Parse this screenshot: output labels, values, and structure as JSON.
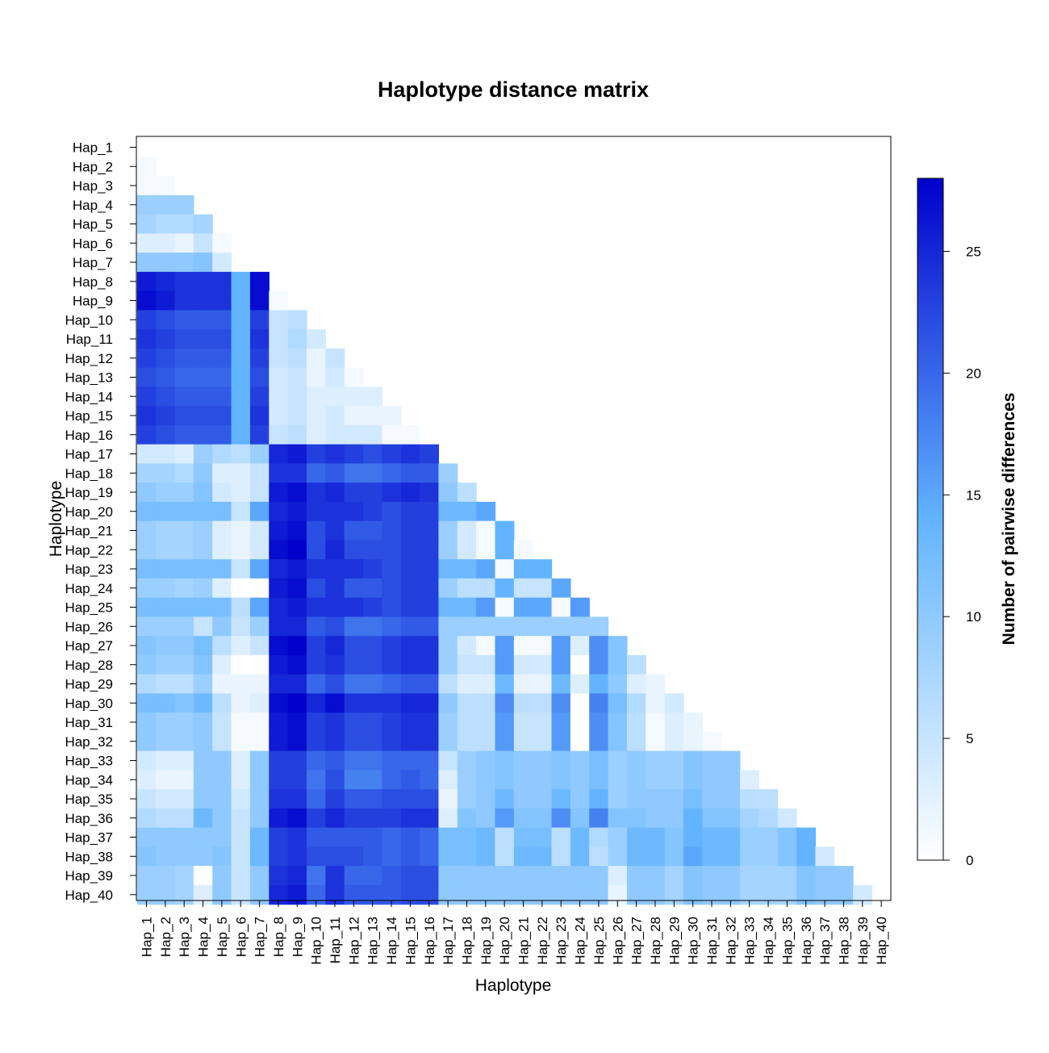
{
  "chart_data": {
    "type": "heatmap",
    "title": "Haplotype distance matrix",
    "xlabel": "Haplotype",
    "ylabel": "Haplotype",
    "colorbar_label": "Number of pairwise differences",
    "colorbar_ticks": [
      0,
      5,
      10,
      15,
      20,
      25
    ],
    "value_range": [
      0,
      28
    ],
    "colors": {
      "low": "#ffffff",
      "mid": "#62b4ff",
      "high": "#0000cc"
    },
    "labels": [
      "Hap_1",
      "Hap_2",
      "Hap_3",
      "Hap_4",
      "Hap_5",
      "Hap_6",
      "Hap_7",
      "Hap_8",
      "Hap_9",
      "Hap_10",
      "Hap_11",
      "Hap_12",
      "Hap_13",
      "Hap_14",
      "Hap_15",
      "Hap_16",
      "Hap_17",
      "Hap_18",
      "Hap_19",
      "Hap_20",
      "Hap_21",
      "Hap_22",
      "Hap_23",
      "Hap_24",
      "Hap_25",
      "Hap_26",
      "Hap_27",
      "Hap_28",
      "Hap_29",
      "Hap_30",
      "Hap_31",
      "Hap_32",
      "Hap_33",
      "Hap_34",
      "Hap_35",
      "Hap_36",
      "Hap_37",
      "Hap_38",
      "Hap_39",
      "Hap_40"
    ],
    "lower_triangle": [
      [],
      [
        1
      ],
      [
        1,
        1
      ],
      [
        9,
        9,
        9
      ],
      [
        8,
        7,
        7,
        8
      ],
      [
        3,
        3,
        2,
        5,
        1
      ],
      [
        10,
        10,
        10,
        11,
        4
      ],
      [
        26,
        25,
        24,
        24,
        24,
        14,
        27
      ],
      [
        27,
        26,
        24,
        24,
        24,
        14,
        27,
        1
      ],
      [
        23,
        22,
        21,
        21,
        21,
        14,
        23,
        5,
        6
      ],
      [
        24,
        23,
        22,
        22,
        22,
        14,
        24,
        5,
        7,
        4
      ],
      [
        23,
        22,
        21,
        21,
        21,
        14,
        23,
        5,
        6,
        2,
        5
      ],
      [
        22,
        21,
        20,
        20,
        20,
        14,
        22,
        4,
        5,
        2,
        4,
        1
      ],
      [
        23,
        22,
        21,
        21,
        21,
        14,
        23,
        4,
        5,
        3,
        3,
        3,
        3
      ],
      [
        24,
        23,
        22,
        22,
        22,
        14,
        24,
        4,
        5,
        3,
        4,
        2,
        2,
        2
      ],
      [
        23,
        22,
        21,
        21,
        21,
        14,
        23,
        5,
        6,
        3,
        4,
        4,
        4,
        1,
        1
      ],
      [
        4,
        4,
        3,
        9,
        7,
        6,
        9,
        25,
        26,
        23,
        24,
        23,
        22,
        23,
        24,
        23
      ],
      [
        8,
        8,
        7,
        10,
        3,
        3,
        5,
        24,
        24,
        20,
        21,
        19,
        19,
        20,
        21,
        21,
        9
      ],
      [
        10,
        9,
        9,
        11,
        4,
        3,
        5,
        26,
        27,
        24,
        25,
        23,
        23,
        24,
        25,
        24,
        10,
        6
      ],
      [
        12,
        12,
        12,
        12,
        12,
        5,
        15,
        25,
        26,
        24,
        24,
        24,
        23,
        22,
        23,
        23,
        13,
        13,
        15
      ],
      [
        9,
        8,
        8,
        9,
        3,
        2,
        4,
        26,
        27,
        22,
        24,
        21,
        21,
        22,
        23,
        23,
        9,
        4,
        1,
        14
      ],
      [
        9,
        8,
        8,
        9,
        3,
        2,
        4,
        27,
        28,
        22,
        25,
        22,
        22,
        22,
        23,
        23,
        9,
        4,
        1,
        14,
        1
      ],
      [
        12,
        12,
        12,
        12,
        12,
        5,
        15,
        25,
        26,
        24,
        24,
        24,
        23,
        22,
        23,
        23,
        13,
        13,
        15,
        1,
        14,
        14
      ],
      [
        9,
        9,
        8,
        9,
        3,
        0,
        0,
        26,
        27,
        22,
        24,
        21,
        21,
        22,
        23,
        23,
        9,
        6,
        6,
        14,
        5,
        5,
        15
      ],
      [
        12,
        12,
        12,
        12,
        12,
        6,
        15,
        25,
        26,
        24,
        24,
        24,
        23,
        22,
        23,
        23,
        13,
        13,
        16,
        1,
        15,
        15,
        1,
        16
      ],
      [
        9,
        9,
        9,
        5,
        10,
        5,
        9,
        25,
        25,
        21,
        22,
        19,
        19,
        20,
        21,
        21,
        9,
        9,
        9,
        9,
        9,
        9,
        9,
        9,
        9
      ],
      [
        11,
        10,
        10,
        12,
        6,
        3,
        5,
        27,
        28,
        23,
        25,
        22,
        22,
        23,
        24,
        24,
        9,
        4,
        1,
        16,
        1,
        1,
        16,
        3,
        17,
        11
      ],
      [
        10,
        9,
        9,
        11,
        3,
        0,
        0,
        26,
        27,
        23,
        24,
        22,
        22,
        23,
        24,
        24,
        9,
        5,
        5,
        16,
        4,
        4,
        16,
        0,
        17,
        11,
        6
      ],
      [
        7,
        6,
        6,
        9,
        2,
        2,
        2,
        25,
        25,
        20,
        22,
        19,
        19,
        20,
        21,
        21,
        6,
        3,
        3,
        13,
        2,
        2,
        13,
        3,
        14,
        10,
        3,
        2
      ],
      [
        12,
        12,
        11,
        13,
        6,
        2,
        3,
        27,
        28,
        25,
        27,
        24,
        24,
        24,
        25,
        25,
        10,
        6,
        6,
        17,
        6,
        6,
        17,
        0,
        18,
        12,
        7,
        2,
        4
      ],
      [
        10,
        9,
        9,
        10,
        5,
        1,
        1,
        26,
        27,
        23,
        24,
        22,
        22,
        23,
        24,
        24,
        9,
        6,
        6,
        16,
        5,
        5,
        16,
        0,
        17,
        11,
        6,
        1,
        3,
        2
      ],
      [
        10,
        9,
        9,
        10,
        5,
        1,
        1,
        26,
        27,
        23,
        24,
        22,
        22,
        23,
        24,
        24,
        9,
        6,
        6,
        16,
        5,
        5,
        16,
        0,
        17,
        11,
        6,
        1,
        3,
        2,
        1
      ],
      [
        4,
        3,
        3,
        10,
        10,
        3,
        10,
        23,
        23,
        20,
        21,
        19,
        19,
        20,
        20,
        20,
        5,
        9,
        10,
        11,
        10,
        10,
        11,
        10,
        12,
        9,
        10,
        9,
        9,
        11,
        10,
        10
      ],
      [
        3,
        2,
        2,
        10,
        10,
        3,
        10,
        23,
        23,
        19,
        22,
        18,
        18,
        20,
        21,
        20,
        3,
        9,
        10,
        11,
        10,
        10,
        11,
        10,
        12,
        9,
        10,
        9,
        9,
        11,
        10,
        10,
        3
      ],
      [
        5,
        4,
        4,
        10,
        10,
        4,
        10,
        24,
        24,
        20,
        23,
        21,
        21,
        22,
        22,
        22,
        2,
        9,
        10,
        13,
        10,
        10,
        13,
        10,
        14,
        9,
        10,
        10,
        10,
        12,
        10,
        10,
        6,
        6
      ],
      [
        7,
        6,
        6,
        13,
        10,
        5,
        10,
        26,
        27,
        23,
        25,
        23,
        23,
        23,
        24,
        24,
        3,
        11,
        10,
        16,
        11,
        11,
        17,
        11,
        18,
        11,
        11,
        10,
        10,
        14,
        11,
        11,
        8,
        7,
        4
      ],
      [
        10,
        10,
        10,
        10,
        10,
        5,
        13,
        23,
        24,
        21,
        21,
        21,
        21,
        20,
        21,
        20,
        12,
        12,
        13,
        6,
        12,
        12,
        6,
        13,
        7,
        9,
        13,
        13,
        11,
        14,
        13,
        13,
        9,
        9,
        11,
        14
      ],
      [
        11,
        10,
        10,
        10,
        11,
        5,
        13,
        23,
        24,
        22,
        22,
        22,
        21,
        20,
        21,
        20,
        12,
        12,
        13,
        6,
        13,
        13,
        6,
        13,
        6,
        9,
        13,
        13,
        11,
        15,
        13,
        13,
        9,
        9,
        11,
        14,
        4
      ],
      [
        9,
        9,
        8,
        0,
        10,
        5,
        10,
        24,
        25,
        19,
        24,
        20,
        20,
        21,
        22,
        22,
        10,
        10,
        10,
        10,
        10,
        10,
        10,
        10,
        10,
        3,
        10,
        10,
        8,
        11,
        10,
        10,
        8,
        8,
        8,
        11,
        10,
        10
      ],
      [
        9,
        9,
        8,
        3,
        10,
        5,
        10,
        25,
        26,
        20,
        24,
        21,
        21,
        21,
        22,
        22,
        10,
        10,
        10,
        10,
        10,
        10,
        10,
        10,
        10,
        2,
        10,
        10,
        8,
        11,
        10,
        10,
        8,
        8,
        8,
        11,
        10,
        10,
        4
      ]
    ]
  }
}
